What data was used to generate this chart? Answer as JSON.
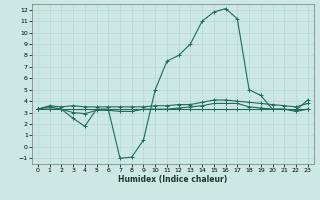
{
  "xlabel": "Humidex (Indice chaleur)",
  "background_color": "#cce8e2",
  "grid_color": "#b8d8d2",
  "line_color": "#1f6b5a",
  "xlim": [
    -0.5,
    23.5
  ],
  "ylim": [
    -1.5,
    12.5
  ],
  "xticks": [
    0,
    1,
    2,
    3,
    4,
    5,
    6,
    7,
    8,
    9,
    10,
    11,
    12,
    13,
    14,
    15,
    16,
    17,
    18,
    19,
    20,
    21,
    22,
    23
  ],
  "yticks": [
    -1,
    0,
    1,
    2,
    3,
    4,
    5,
    6,
    7,
    8,
    9,
    10,
    11,
    12
  ],
  "series": [
    {
      "x": [
        0,
        1,
        2,
        3,
        4,
        5,
        6,
        7,
        8,
        9,
        10,
        11,
        12,
        13,
        14,
        15,
        16,
        17,
        18,
        19,
        20,
        21,
        22,
        23
      ],
      "y": [
        3.3,
        3.5,
        3.3,
        2.5,
        1.8,
        3.3,
        3.3,
        -1.0,
        -0.9,
        0.6,
        5.0,
        7.5,
        8.0,
        9.0,
        11.0,
        11.8,
        12.1,
        11.2,
        5.0,
        4.5,
        3.3,
        3.3,
        3.1,
        3.3
      ]
    },
    {
      "x": [
        0,
        1,
        2,
        3,
        4,
        5,
        6,
        7,
        8,
        9,
        10,
        11,
        12,
        13,
        14,
        15,
        16,
        17,
        18,
        19,
        20,
        21,
        22,
        23
      ],
      "y": [
        3.3,
        3.6,
        3.5,
        3.6,
        3.5,
        3.5,
        3.5,
        3.5,
        3.5,
        3.5,
        3.6,
        3.6,
        3.7,
        3.7,
        3.9,
        4.1,
        4.1,
        4.0,
        3.9,
        3.8,
        3.7,
        3.6,
        3.5,
        3.8
      ]
    },
    {
      "x": [
        0,
        1,
        2,
        3,
        4,
        5,
        6,
        7,
        8,
        9,
        10,
        11,
        12,
        13,
        14,
        15,
        16,
        17,
        18,
        19,
        20,
        21,
        22,
        23
      ],
      "y": [
        3.3,
        3.3,
        3.3,
        3.3,
        3.3,
        3.3,
        3.3,
        3.3,
        3.3,
        3.3,
        3.3,
        3.3,
        3.3,
        3.3,
        3.3,
        3.3,
        3.3,
        3.3,
        3.3,
        3.3,
        3.3,
        3.3,
        3.3,
        3.3
      ]
    },
    {
      "x": [
        0,
        1,
        2,
        3,
        4,
        5,
        6,
        7,
        8,
        9,
        10,
        11,
        12,
        13,
        14,
        15,
        16,
        17,
        18,
        19,
        20,
        21,
        22,
        23
      ],
      "y": [
        3.3,
        3.3,
        3.3,
        3.0,
        2.9,
        3.2,
        3.2,
        3.1,
        3.1,
        3.3,
        3.3,
        3.3,
        3.4,
        3.5,
        3.6,
        3.8,
        3.8,
        3.8,
        3.5,
        3.4,
        3.3,
        3.3,
        3.2,
        4.1
      ]
    }
  ]
}
